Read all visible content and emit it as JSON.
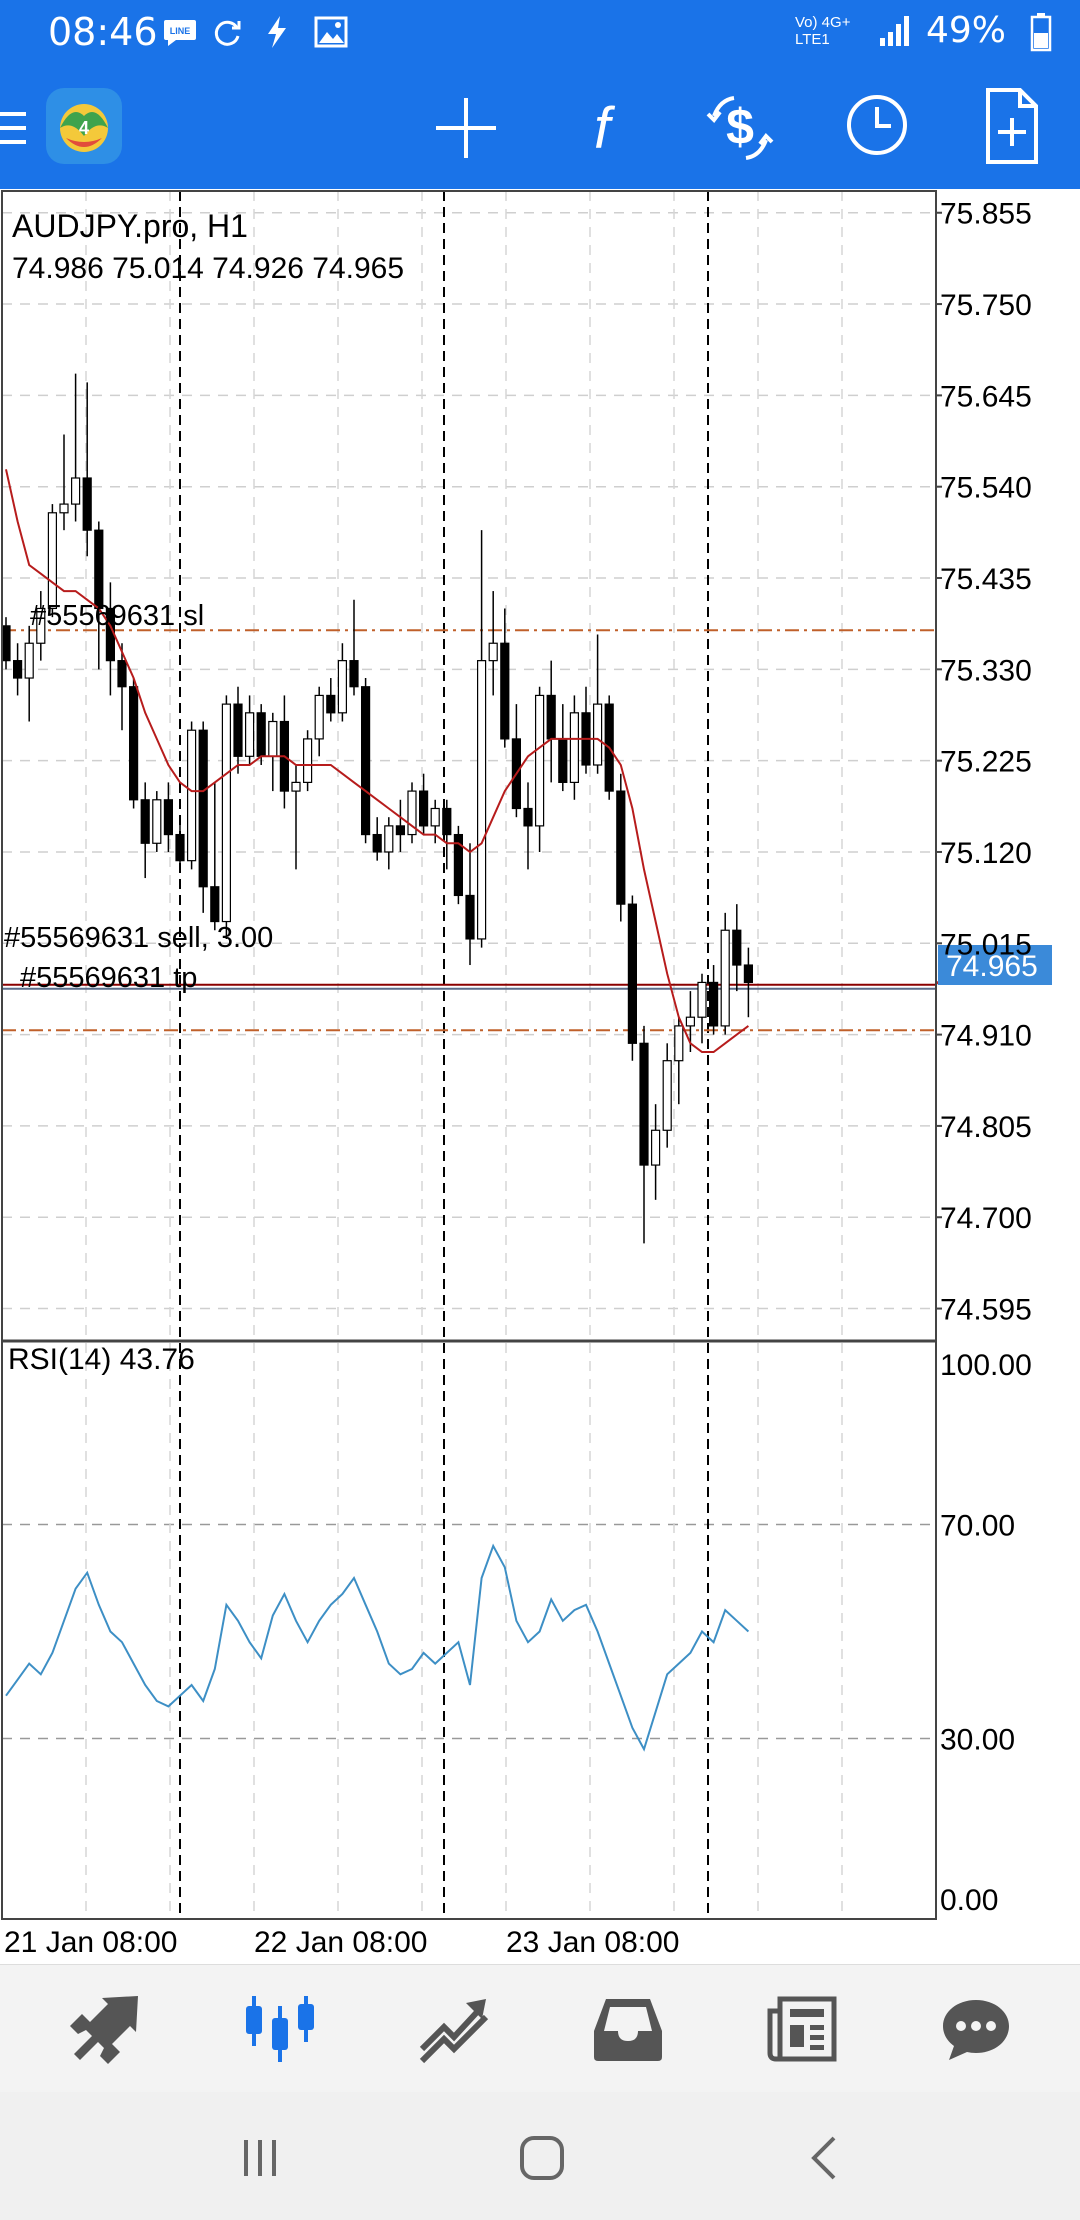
{
  "status_bar": {
    "time": "08:46",
    "network": "Vo) 4G+ LTE1",
    "battery": "49%",
    "icons": [
      "line-icon",
      "sync-icon",
      "flash-icon",
      "image-icon",
      "signal-icon",
      "battery-icon"
    ]
  },
  "toolbar": {
    "buttons": [
      {
        "name": "menu-icon"
      },
      {
        "name": "app-logo-icon"
      },
      {
        "name": "crosshair-icon"
      },
      {
        "name": "indicators-icon"
      },
      {
        "name": "symbol-dollar-icon"
      },
      {
        "name": "timeframe-clock-icon"
      },
      {
        "name": "new-order-icon"
      }
    ]
  },
  "chart": {
    "symbol_title": "AUDJPY.pro, H1",
    "ohlc": "74.986 75.014 74.926 74.965",
    "current_price": "74.965",
    "current_price_value": 74.965,
    "sl_label": "#55569631 sl",
    "sl_value": 75.375,
    "order_label": "#55569631 sell, 3.00",
    "order_value": 74.965,
    "tp_label": "#55569631 tp",
    "tp_value": 74.915,
    "price_ticks": [
      "75.855",
      "75.750",
      "75.645",
      "75.540",
      "75.435",
      "75.330",
      "75.225",
      "75.120",
      "75.015",
      "74.910",
      "74.805",
      "74.700",
      "74.595"
    ],
    "price_tick_values": [
      75.855,
      75.75,
      75.645,
      75.54,
      75.435,
      75.33,
      75.225,
      75.12,
      75.015,
      74.91,
      74.805,
      74.7,
      74.595
    ],
    "rsi_label": "RSI(14) 43.76",
    "rsi_ticks": [
      "100.00",
      "70.00",
      "30.00",
      "0.00"
    ],
    "rsi_tick_values": [
      100,
      70,
      30,
      0
    ],
    "time_labels": [
      "21 Jan 08:00",
      "22 Jan 08:00",
      "23 Jan 08:00"
    ],
    "colors": {
      "bull": "#ffffff",
      "bear": "#000000",
      "ma": "#b71c1c",
      "sl_tp": "#c0602a",
      "order": "#8b0000",
      "rsi": "#3d8fc5",
      "price_tag": "#3b8ad9"
    }
  },
  "chart_data": {
    "type": "candlestick",
    "title": "AUDJPY.pro, H1",
    "ylim": [
      74.56,
      75.88
    ],
    "candles_ohlc": [
      [
        75.38,
        75.39,
        75.33,
        75.34
      ],
      [
        75.34,
        75.36,
        75.3,
        75.32
      ],
      [
        75.32,
        75.38,
        75.27,
        75.36
      ],
      [
        75.36,
        75.42,
        75.34,
        75.4
      ],
      [
        75.4,
        75.52,
        75.39,
        75.51
      ],
      [
        75.51,
        75.6,
        75.49,
        75.52
      ],
      [
        75.52,
        75.67,
        75.5,
        75.55
      ],
      [
        75.55,
        75.66,
        75.46,
        75.49
      ],
      [
        75.49,
        75.5,
        75.33,
        75.4
      ],
      [
        75.4,
        75.43,
        75.3,
        75.34
      ],
      [
        75.34,
        75.36,
        75.26,
        75.31
      ],
      [
        75.31,
        75.32,
        75.17,
        75.18
      ],
      [
        75.18,
        75.2,
        75.09,
        75.13
      ],
      [
        75.13,
        75.19,
        75.12,
        75.18
      ],
      [
        75.18,
        75.2,
        75.12,
        75.14
      ],
      [
        75.14,
        75.16,
        75.1,
        75.11
      ],
      [
        75.11,
        75.27,
        75.1,
        75.26
      ],
      [
        75.26,
        75.27,
        75.05,
        75.08
      ],
      [
        75.08,
        75.2,
        75.03,
        75.04
      ],
      [
        75.04,
        75.3,
        75.02,
        75.29
      ],
      [
        75.29,
        75.31,
        75.21,
        75.23
      ],
      [
        75.23,
        75.3,
        75.22,
        75.28
      ],
      [
        75.28,
        75.29,
        75.22,
        75.23
      ],
      [
        75.23,
        75.28,
        75.19,
        75.27
      ],
      [
        75.27,
        75.3,
        75.17,
        75.19
      ],
      [
        75.19,
        75.22,
        75.1,
        75.2
      ],
      [
        75.2,
        75.26,
        75.19,
        75.25
      ],
      [
        75.25,
        75.31,
        75.23,
        75.3
      ],
      [
        75.3,
        75.32,
        75.27,
        75.28
      ],
      [
        75.28,
        75.36,
        75.27,
        75.34
      ],
      [
        75.34,
        75.41,
        75.3,
        75.31
      ],
      [
        75.31,
        75.32,
        75.13,
        75.14
      ],
      [
        75.14,
        75.16,
        75.11,
        75.12
      ],
      [
        75.12,
        75.16,
        75.1,
        75.15
      ],
      [
        75.15,
        75.18,
        75.12,
        75.14
      ],
      [
        75.14,
        75.2,
        75.13,
        75.19
      ],
      [
        75.19,
        75.21,
        75.14,
        75.15
      ],
      [
        75.15,
        75.18,
        75.13,
        75.17
      ],
      [
        75.17,
        75.18,
        75.1,
        75.14
      ],
      [
        75.14,
        75.15,
        75.06,
        75.07
      ],
      [
        75.07,
        75.13,
        74.99,
        75.02
      ],
      [
        75.02,
        75.49,
        75.01,
        75.34
      ],
      [
        75.34,
        75.42,
        75.3,
        75.36
      ],
      [
        75.36,
        75.4,
        75.24,
        75.25
      ],
      [
        75.25,
        75.29,
        75.16,
        75.17
      ],
      [
        75.17,
        75.2,
        75.1,
        75.15
      ],
      [
        75.15,
        75.31,
        75.12,
        75.3
      ],
      [
        75.3,
        75.34,
        75.2,
        75.25
      ],
      [
        75.25,
        75.29,
        75.19,
        75.2
      ],
      [
        75.2,
        75.3,
        75.18,
        75.28
      ],
      [
        75.28,
        75.31,
        75.21,
        75.22
      ],
      [
        75.22,
        75.37,
        75.21,
        75.29
      ],
      [
        75.29,
        75.3,
        75.18,
        75.19
      ],
      [
        75.19,
        75.21,
        75.04,
        75.06
      ],
      [
        75.06,
        75.07,
        74.88,
        74.9
      ],
      [
        74.9,
        74.92,
        74.67,
        74.76
      ],
      [
        74.76,
        74.83,
        74.72,
        74.8
      ],
      [
        74.8,
        74.9,
        74.78,
        74.88
      ],
      [
        74.88,
        74.93,
        74.83,
        74.92
      ],
      [
        74.92,
        74.96,
        74.89,
        74.93
      ],
      [
        74.93,
        74.98,
        74.9,
        74.97
      ],
      [
        74.97,
        74.99,
        74.91,
        74.92
      ],
      [
        74.92,
        75.05,
        74.91,
        75.03
      ],
      [
        75.03,
        75.06,
        74.96,
        74.99
      ],
      [
        74.99,
        75.01,
        74.93,
        74.97
      ]
    ],
    "ma": [
      75.56,
      75.5,
      75.45,
      75.44,
      75.43,
      75.42,
      75.42,
      75.41,
      75.4,
      75.38,
      75.35,
      75.32,
      75.28,
      75.25,
      75.22,
      75.2,
      75.19,
      75.19,
      75.2,
      75.21,
      75.22,
      75.22,
      75.23,
      75.23,
      75.23,
      75.22,
      75.22,
      75.22,
      75.22,
      75.21,
      75.2,
      75.19,
      75.18,
      75.17,
      75.16,
      75.15,
      75.14,
      75.14,
      75.13,
      75.13,
      75.12,
      75.13,
      75.16,
      75.19,
      75.21,
      75.23,
      75.24,
      75.25,
      75.25,
      75.25,
      75.25,
      75.25,
      75.24,
      75.22,
      75.17,
      75.1,
      75.04,
      74.98,
      74.93,
      74.9,
      74.89,
      74.89,
      74.9,
      74.91,
      74.92
    ],
    "rsi": {
      "ylim": [
        0,
        100
      ],
      "values": [
        38,
        41,
        44,
        42,
        46,
        52,
        58,
        61,
        55,
        50,
        48,
        44,
        40,
        37,
        36,
        38,
        40,
        37,
        43,
        55,
        52,
        48,
        45,
        53,
        57,
        52,
        48,
        52,
        55,
        57,
        60,
        55,
        50,
        44,
        42,
        43,
        46,
        44,
        46,
        48,
        40,
        60,
        66,
        62,
        52,
        48,
        50,
        56,
        52,
        54,
        55,
        50,
        44,
        38,
        32,
        28,
        35,
        42,
        44,
        46,
        50,
        48,
        54,
        52,
        50
      ]
    }
  },
  "bottom_nav": {
    "items": [
      {
        "name": "quotes-icon",
        "active": false
      },
      {
        "name": "chart-icon",
        "active": true
      },
      {
        "name": "trade-icon",
        "active": false
      },
      {
        "name": "history-icon",
        "active": false
      },
      {
        "name": "news-icon",
        "active": false
      },
      {
        "name": "messages-icon",
        "active": false
      }
    ]
  }
}
